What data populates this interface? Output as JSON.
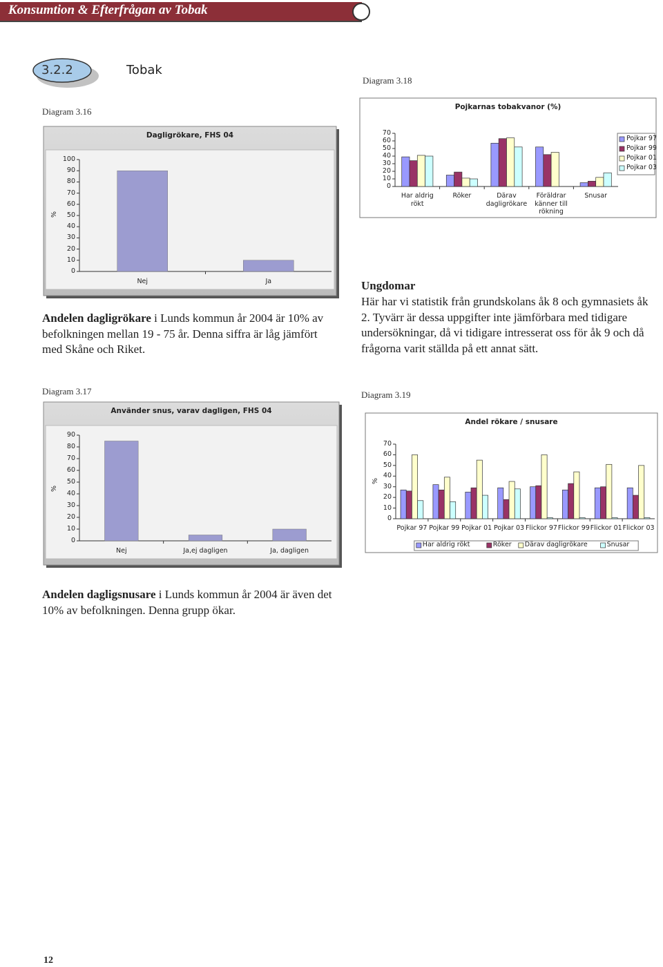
{
  "header": {
    "title": "Konsumtion & Efterfrågan av Tobak"
  },
  "section": {
    "number": "3.2.2",
    "title": "Tobak"
  },
  "captions": [
    "Diagram 3.16",
    "Diagram 3.17",
    "Diagram 3.18",
    "Diagram 3.19"
  ],
  "paragraph_1": {
    "lead": "Andelen dagligrökare",
    "text": " i Lunds kommun år 2004 är 10% av befolkningen mellan 19 - 75 år. Denna siffra är låg jämfört med Skåne och Riket."
  },
  "youth": {
    "heading": "Ungdomar",
    "text": "Här har vi statistik från grundskolans åk 8 och gymnasiets åk 2. Tyvärr är dessa uppgifter inte jämförbara med tidigare undersökningar, då vi tidigare intresserat oss för åk 9 och då frågorna varit ställda på ett annat sätt."
  },
  "paragraph_2": {
    "lead": "Andelen dagligsnusare",
    "text": " i Lunds kommun år 2004 är även det 10% av befolkningen. Denna grupp ökar."
  },
  "page_number": "12",
  "chart_data": [
    {
      "type": "bar",
      "title": "Dagligrökare, FHS 04",
      "ylabel": "%",
      "categories": [
        "Nej",
        "Ja"
      ],
      "values": [
        90,
        10
      ],
      "color": "#9c9cd0",
      "ylim": [
        0,
        100
      ],
      "yticks": [
        0,
        10,
        20,
        30,
        40,
        50,
        60,
        70,
        80,
        90,
        100
      ],
      "grid": false
    },
    {
      "type": "bar",
      "title": "Pojkarnas tobakvanor (%)",
      "categories": [
        "Har aldrig rökt",
        "Röker",
        "Därav dagligrökare",
        "Föräldrar känner till rökning",
        "Snusar"
      ],
      "series": [
        {
          "name": "Pojkar 97",
          "color": "#9999ff",
          "values": [
            39,
            15,
            57,
            52,
            5
          ]
        },
        {
          "name": "Pojkar 99",
          "color": "#993366",
          "values": [
            34,
            19,
            63,
            42,
            7
          ]
        },
        {
          "name": "Pojkar 01",
          "color": "#ffffcc",
          "values": [
            41,
            11,
            64,
            45,
            12
          ]
        },
        {
          "name": "Pojkar 03",
          "color": "#ccffff",
          "values": [
            40,
            10,
            52,
            null,
            18
          ]
        }
      ],
      "ylim": [
        0,
        70
      ],
      "yticks": [
        0,
        10,
        20,
        30,
        40,
        50,
        60,
        70
      ],
      "grid": false,
      "legend": "right"
    },
    {
      "type": "bar",
      "title": "Använder snus, varav dagligen, FHS 04",
      "ylabel": "%",
      "categories": [
        "Nej",
        "Ja,ej dagligen",
        "Ja, dagligen"
      ],
      "values": [
        85,
        5,
        10
      ],
      "color": "#9c9cd0",
      "ylim": [
        0,
        90
      ],
      "yticks": [
        0,
        10,
        20,
        30,
        40,
        50,
        60,
        70,
        80,
        90
      ],
      "grid": false
    },
    {
      "type": "bar",
      "title": "Andel rökare / snusare",
      "ylabel": "%",
      "categories": [
        "Pojkar 97",
        "Pojkar 99",
        "Pojkar 01",
        "Pojkar 03",
        "Flickor 97",
        "Flickor 99",
        "Flickor 01",
        "Flickor 03"
      ],
      "series": [
        {
          "name": "Har aldrig rökt",
          "color": "#9999ff",
          "values": [
            27,
            32,
            25,
            29,
            30,
            27,
            29,
            29
          ]
        },
        {
          "name": "Röker",
          "color": "#993366",
          "values": [
            26,
            27,
            29,
            18,
            31,
            33,
            30,
            22
          ]
        },
        {
          "name": "Därav dagligrökare",
          "color": "#ffffcc",
          "values": [
            60,
            39,
            55,
            35,
            60,
            44,
            51,
            50
          ]
        },
        {
          "name": "Snusar",
          "color": "#ccffff",
          "values": [
            17,
            16,
            22,
            28,
            1,
            1,
            1,
            1
          ]
        }
      ],
      "ylim": [
        0,
        70
      ],
      "yticks": [
        0,
        10,
        20,
        30,
        40,
        50,
        60,
        70
      ],
      "grid": false,
      "legend": "bottom"
    }
  ]
}
